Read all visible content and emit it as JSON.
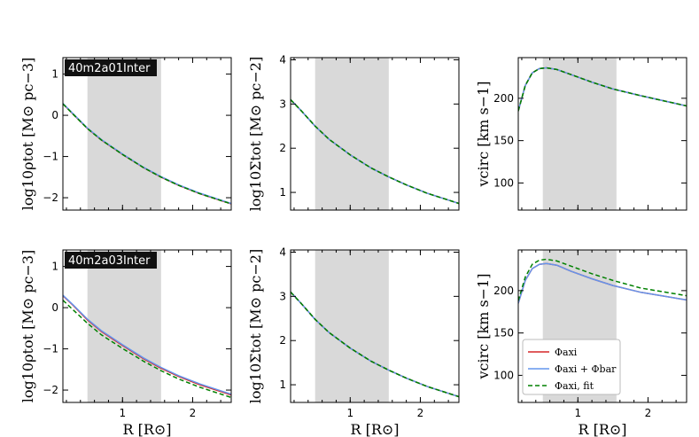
{
  "chart_data": {
    "type": "line",
    "layout": "2x3 grid",
    "xlabel": "R [R⊙]",
    "colors": {
      "axi": "#d62728",
      "axi_bar": "#6495ed",
      "axi_fit": "#008000",
      "band": "#d9d9d9"
    },
    "legend": {
      "placement": "lower-left of bottom-right panel",
      "entries": [
        {
          "key": "axi",
          "label": "Φaxi",
          "style": "solid"
        },
        {
          "key": "axi_bar",
          "label": "Φaxi + Φbar",
          "style": "solid"
        },
        {
          "key": "axi_fit",
          "label": "Φaxi, fit",
          "style": "dashed"
        }
      ]
    },
    "panels": [
      {
        "id": "rho-top",
        "tag": "40m2a01Inter",
        "ylabel": "log10ρtot [M⊙ pc−3]",
        "xlim": [
          0.15,
          2.55
        ],
        "ylim": [
          -2.3,
          1.4
        ],
        "band": [
          0.5,
          1.55
        ],
        "xticks": [
          1,
          2
        ],
        "yticks": [
          -2,
          -1,
          0,
          1
        ],
        "yticklabels": [
          "−2",
          "−1",
          "0",
          "1"
        ],
        "x": [
          0.15,
          0.3,
          0.5,
          0.7,
          1.0,
          1.3,
          1.55,
          1.8,
          2.1,
          2.55
        ],
        "series": [
          {
            "key": "axi",
            "values": [
              0.28,
              0.02,
              -0.32,
              -0.6,
              -0.95,
              -1.27,
              -1.5,
              -1.7,
              -1.9,
              -2.15
            ]
          },
          {
            "key": "axi_bar",
            "values": [
              0.29,
              0.03,
              -0.31,
              -0.59,
              -0.94,
              -1.26,
              -1.49,
              -1.69,
              -1.89,
              -2.14
            ]
          },
          {
            "key": "axi_fit",
            "values": [
              0.28,
              0.02,
              -0.32,
              -0.6,
              -0.95,
              -1.27,
              -1.5,
              -1.7,
              -1.9,
              -2.15
            ]
          }
        ]
      },
      {
        "id": "sigma-top",
        "ylabel": "log10Σtot [M⊙ pc−2]",
        "xlim": [
          0.15,
          2.55
        ],
        "ylim": [
          0.6,
          4.05
        ],
        "band": [
          0.5,
          1.55
        ],
        "xticks": [
          1,
          2
        ],
        "yticks": [
          1,
          2,
          3,
          4
        ],
        "yticklabels": [
          "1",
          "2",
          "3",
          "4"
        ],
        "x": [
          0.15,
          0.3,
          0.5,
          0.7,
          1.0,
          1.3,
          1.55,
          1.8,
          2.1,
          2.55
        ],
        "series": [
          {
            "key": "axi",
            "values": [
              3.1,
              2.85,
              2.5,
              2.2,
              1.85,
              1.55,
              1.35,
              1.17,
              0.98,
              0.75
            ]
          },
          {
            "key": "axi_bar",
            "values": [
              3.1,
              2.85,
              2.5,
              2.2,
              1.85,
              1.55,
              1.35,
              1.17,
              0.98,
              0.75
            ]
          },
          {
            "key": "axi_fit",
            "values": [
              3.1,
              2.85,
              2.5,
              2.2,
              1.85,
              1.55,
              1.35,
              1.17,
              0.98,
              0.75
            ]
          }
        ]
      },
      {
        "id": "vc-top",
        "ylabel": "vcirc [km s−1]",
        "xlim": [
          0.15,
          2.55
        ],
        "ylim": [
          68,
          248
        ],
        "band": [
          0.5,
          1.55
        ],
        "xticks": [
          1,
          2
        ],
        "yticks": [
          100,
          150,
          200
        ],
        "yticklabels": [
          "100",
          "150",
          "200"
        ],
        "x": [
          0.15,
          0.25,
          0.35,
          0.45,
          0.55,
          0.7,
          0.9,
          1.2,
          1.5,
          1.9,
          2.55
        ],
        "series": [
          {
            "key": "axi",
            "values": [
              185,
              215,
              230,
              235,
              236,
              234,
              228,
              219,
              211,
              203,
              191
            ]
          },
          {
            "key": "axi_bar",
            "values": [
              185,
              215,
              230,
              235,
              236,
              234,
              228,
              219,
              211,
              203,
              191
            ]
          },
          {
            "key": "axi_fit",
            "values": [
              185,
              215,
              230,
              235,
              236,
              234,
              228,
              219,
              211,
              203,
              191
            ]
          }
        ]
      },
      {
        "id": "rho-bot",
        "tag": "40m2a03Inter",
        "ylabel": "log10ρtot [M⊙ pc−3]",
        "xlim": [
          0.15,
          2.55
        ],
        "ylim": [
          -2.3,
          1.4
        ],
        "band": [
          0.5,
          1.55
        ],
        "xticks": [
          1,
          2
        ],
        "yticks": [
          -2,
          -1,
          0,
          1
        ],
        "yticklabels": [
          "−2",
          "−1",
          "0",
          "1"
        ],
        "x": [
          0.15,
          0.3,
          0.5,
          0.7,
          1.0,
          1.3,
          1.55,
          1.8,
          2.1,
          2.55
        ],
        "series": [
          {
            "key": "axi",
            "values": [
              0.29,
              0.05,
              -0.3,
              -0.58,
              -0.92,
              -1.24,
              -1.47,
              -1.67,
              -1.87,
              -2.12
            ]
          },
          {
            "key": "axi_bar",
            "values": [
              0.3,
              0.06,
              -0.28,
              -0.56,
              -0.9,
              -1.22,
              -1.45,
              -1.65,
              -1.85,
              -2.1
            ]
          },
          {
            "key": "axi_fit",
            "values": [
              0.18,
              -0.06,
              -0.38,
              -0.66,
              -0.99,
              -1.3,
              -1.53,
              -1.73,
              -1.93,
              -2.18
            ]
          }
        ]
      },
      {
        "id": "sigma-bot",
        "ylabel": "log10Σtot [M⊙ pc−2]",
        "xlim": [
          0.15,
          2.55
        ],
        "ylim": [
          0.6,
          4.05
        ],
        "band": [
          0.5,
          1.55
        ],
        "xticks": [
          1,
          2
        ],
        "yticks": [
          1,
          2,
          3,
          4
        ],
        "yticklabels": [
          "1",
          "2",
          "3",
          "4"
        ],
        "x": [
          0.15,
          0.3,
          0.5,
          0.7,
          1.0,
          1.3,
          1.55,
          1.8,
          2.1,
          2.55
        ],
        "series": [
          {
            "key": "axi",
            "values": [
              3.1,
              2.84,
              2.48,
              2.18,
              1.83,
              1.53,
              1.33,
              1.15,
              0.96,
              0.73
            ]
          },
          {
            "key": "axi_bar",
            "values": [
              3.1,
              2.84,
              2.48,
              2.18,
              1.83,
              1.53,
              1.33,
              1.15,
              0.96,
              0.73
            ]
          },
          {
            "key": "axi_fit",
            "values": [
              3.1,
              2.84,
              2.48,
              2.18,
              1.83,
              1.53,
              1.33,
              1.15,
              0.96,
              0.73
            ]
          }
        ]
      },
      {
        "id": "vc-bot",
        "ylabel": "vcirc [km s−1]",
        "xlim": [
          0.15,
          2.55
        ],
        "ylim": [
          68,
          248
        ],
        "band": [
          0.5,
          1.55
        ],
        "xticks": [
          1,
          2
        ],
        "yticks": [
          100,
          150,
          200
        ],
        "yticklabels": [
          "100",
          "150",
          "200"
        ],
        "x": [
          0.15,
          0.25,
          0.35,
          0.45,
          0.55,
          0.7,
          0.9,
          1.2,
          1.5,
          1.9,
          2.55
        ],
        "series": [
          {
            "key": "axi",
            "values": [
              185,
              212,
              226,
              231,
              232,
              230,
              223,
              214,
              206,
              198,
              189
            ]
          },
          {
            "key": "axi_bar",
            "values": [
              185,
              212,
              226,
              231,
              232,
              230,
              223,
              214,
              206,
              198,
              189
            ]
          },
          {
            "key": "axi_fit",
            "values": [
              188,
              216,
              231,
              236,
              237,
              235,
              229,
              220,
              212,
              203,
              194
            ]
          }
        ]
      }
    ]
  }
}
